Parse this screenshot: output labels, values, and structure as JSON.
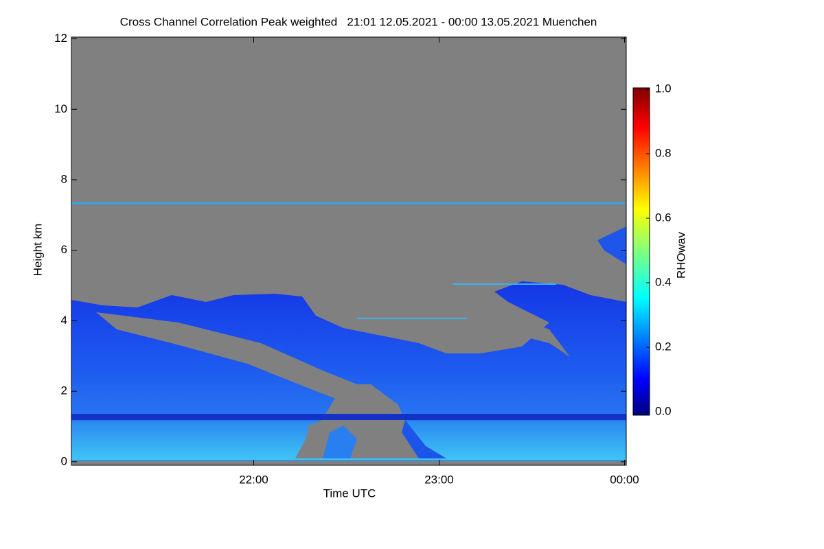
{
  "chart_data": {
    "type": "heatmap",
    "title": "Cross Channel Correlation Peak weighted   21:01 12.05.2021 - 00:00 13.05.2021 Muenchen",
    "xlabel": "Time UTC",
    "ylabel": "Height km",
    "colorbar_label": "RHOwav",
    "colormap": "jet",
    "xlim": [
      21.0167,
      24.0093
    ],
    "xticks": [
      {
        "value": 22,
        "label": "22:00"
      },
      {
        "value": 23,
        "label": "23:00"
      },
      {
        "value": 24,
        "label": "00:00"
      }
    ],
    "ylim": [
      -0.1,
      12.05
    ],
    "yticks": [
      0,
      2,
      4,
      6,
      8,
      10,
      12
    ],
    "zlim": [
      0,
      1
    ],
    "zticks": [
      {
        "value": 0,
        "label": "0.0"
      },
      {
        "value": 0.2,
        "label": "0.2"
      },
      {
        "value": 0.4,
        "label": "0.4"
      },
      {
        "value": 0.6,
        "label": "0.6"
      },
      {
        "value": 0.8,
        "label": "0.8"
      },
      {
        "value": 1,
        "label": "1.0"
      }
    ]
  }
}
